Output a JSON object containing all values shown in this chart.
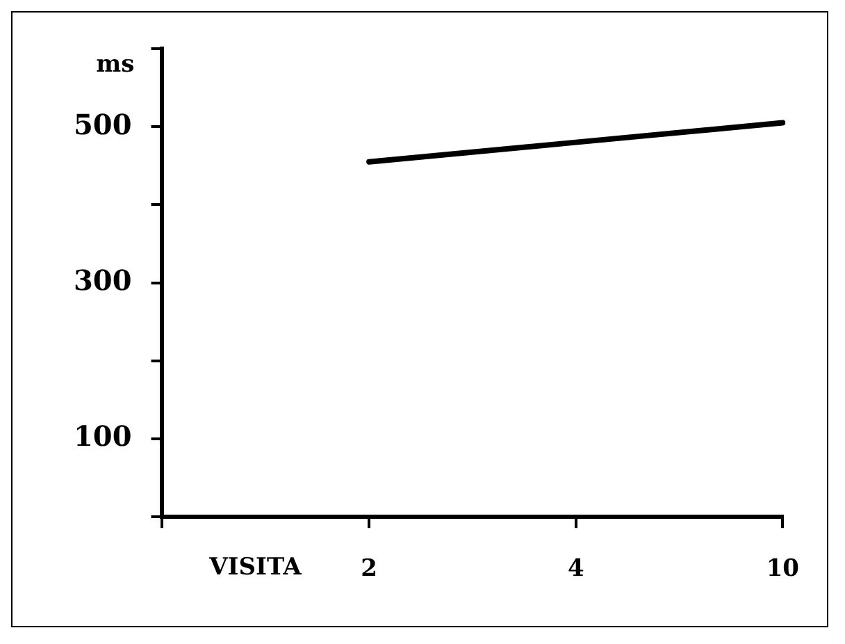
{
  "chart_data": {
    "type": "line",
    "xlabel": "VISITA",
    "ylabel": "ms",
    "categories": [
      null,
      "2",
      "4",
      "10"
    ],
    "series": [
      {
        "color": "#000000",
        "values": [
          null,
          455,
          480,
          505
        ]
      }
    ],
    "ylim": [
      0,
      600
    ],
    "yticks": [
      {
        "value": 0,
        "label": null
      },
      100,
      {
        "value": 200,
        "label": null
      },
      300,
      {
        "value": 400,
        "label": null
      },
      500,
      {
        "value": 600,
        "label": null
      }
    ],
    "grid": false,
    "legend": false,
    "marker": "none",
    "line_style": "solid"
  }
}
